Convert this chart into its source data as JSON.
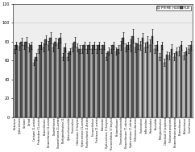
{
  "categories": [
    "Prednisone",
    "Hydrocortisone",
    "Cortisone",
    "Cortisol",
    "Cortisone 21-acetate",
    "Prednisolone 21-acetate",
    "Betamethasone",
    "Betamethasone 21-acetate",
    "Dexamethasone",
    "Dexamethasone 21-acetate",
    "Methylprednisolone 21-",
    "Hydrocortisoncortide",
    "Triamcinolone",
    "Clobetasone 17-butyrate",
    "Hydrocortisone 21-acetate",
    "Fludrocortisone 21-Acetate",
    "Fluorometholone",
    "Prednisone 21-acetate",
    "Budesonide",
    "Hydrocortisone 17-butyrate",
    "Fluorometholone 17-butyrate",
    "Beclomethasone",
    "Triamcinolone acetonide",
    "Betamethasone 17-valerate",
    "Hydrocortisone 17-valerate",
    "Diflorasone diacetate",
    "Triamcinolone",
    "Isoflucortolone",
    "Prednicarbate",
    "Amcinolide",
    "Methylprednisolone",
    "Clobetasol 17-propionate",
    "Fluticasone propionate",
    "Betamethasone propionate",
    "Betamethasone",
    "Alclometasone",
    "Flumethasone"
  ],
  "prime_hlb": [
    72,
    75,
    76,
    74,
    58,
    72,
    74,
    76,
    74,
    78,
    64,
    64,
    74,
    74,
    72,
    72,
    72,
    72,
    72,
    64,
    72,
    70,
    76,
    74,
    76,
    74,
    76,
    74,
    76,
    72,
    64,
    58,
    65,
    64,
    70,
    65,
    72
  ],
  "hlb": [
    76,
    80,
    80,
    76,
    64,
    76,
    82,
    84,
    80,
    84,
    74,
    70,
    80,
    72,
    76,
    76,
    76,
    76,
    76,
    70,
    76,
    72,
    84,
    76,
    86,
    78,
    84,
    80,
    86,
    76,
    76,
    66,
    72,
    70,
    76,
    70,
    76
  ],
  "prime_err": [
    4,
    4,
    4,
    4,
    3,
    4,
    4,
    5,
    4,
    5,
    4,
    4,
    4,
    4,
    4,
    4,
    4,
    4,
    4,
    4,
    4,
    4,
    5,
    4,
    6,
    5,
    5,
    5,
    6,
    4,
    4,
    4,
    4,
    4,
    5,
    4,
    4
  ],
  "hlb_err": [
    4,
    4,
    5,
    4,
    4,
    4,
    5,
    6,
    4,
    5,
    4,
    3,
    5,
    4,
    4,
    4,
    4,
    4,
    4,
    4,
    4,
    4,
    6,
    4,
    7,
    6,
    5,
    6,
    7,
    5,
    4,
    4,
    5,
    4,
    5,
    4,
    5
  ],
  "prime_color": "#d0d0d0",
  "hlb_color": "#505050",
  "ylim": [
    0,
    120
  ],
  "yticks": [
    0,
    20,
    40,
    60,
    80,
    100,
    120
  ],
  "legend_labels": [
    "PRIME HLB",
    "HLB"
  ],
  "bg_color": "#eeeeee"
}
